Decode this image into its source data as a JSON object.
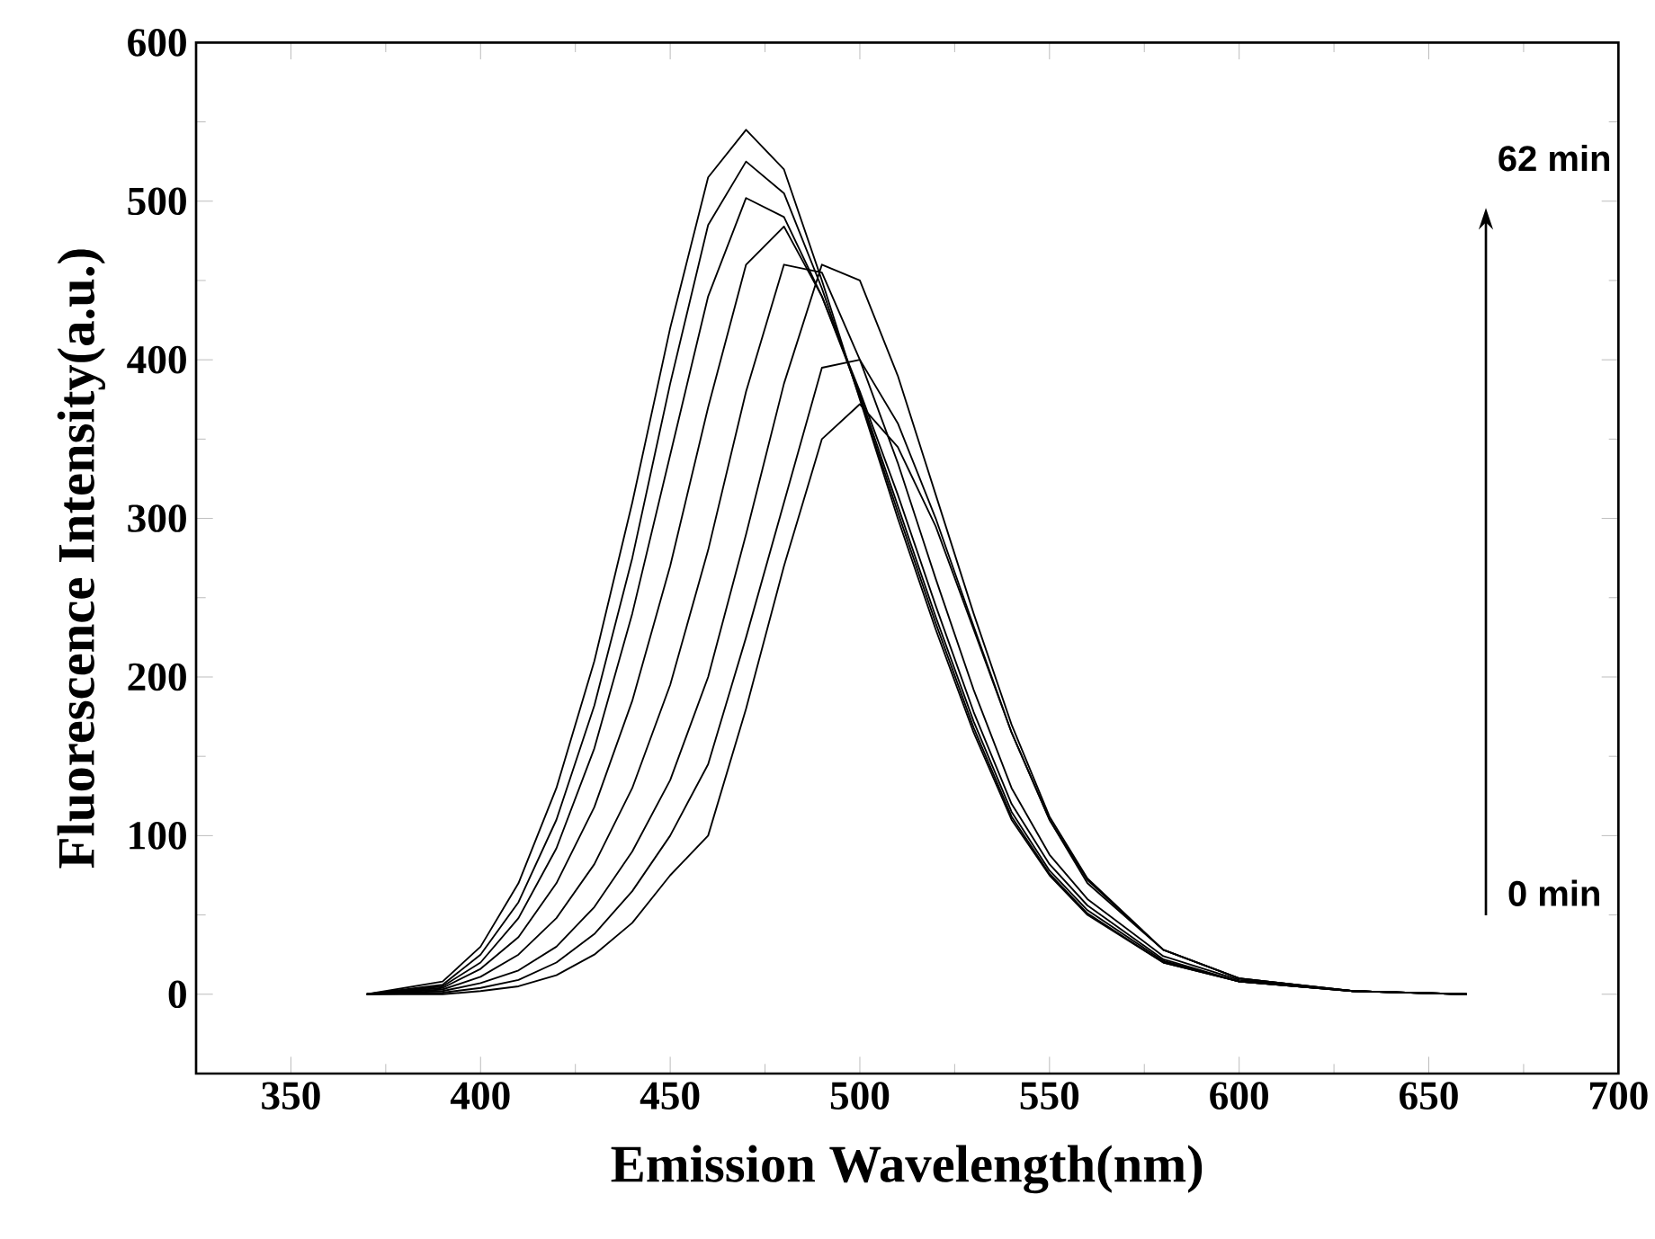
{
  "chart_data": {
    "type": "line",
    "xlabel": "Emission Wavelength(nm)",
    "ylabel": "Fluorescence Intensity(a.u.)",
    "annotations": [
      "62 min",
      "0 min"
    ],
    "x": [
      370,
      390,
      400,
      410,
      420,
      430,
      440,
      450,
      460,
      470,
      480,
      490,
      500,
      510,
      520,
      530,
      540,
      550,
      560,
      580,
      600,
      630,
      660
    ],
    "series": [
      {
        "color": "#000000",
        "values": [
          0,
          0,
          2,
          5,
          12,
          25,
          45,
          75,
          100,
          180,
          270,
          350,
          372,
          345,
          295,
          230,
          165,
          110,
          70,
          28,
          10,
          2,
          0
        ]
      },
      {
        "color": "#000000",
        "values": [
          0,
          1,
          4,
          9,
          20,
          38,
          65,
          100,
          145,
          225,
          310,
          395,
          400,
          360,
          300,
          232,
          165,
          110,
          72,
          28,
          10,
          2,
          0
        ]
      },
      {
        "color": "#000000",
        "values": [
          0,
          2,
          7,
          15,
          30,
          55,
          90,
          135,
          200,
          290,
          385,
          460,
          450,
          390,
          315,
          240,
          170,
          112,
          73,
          28,
          10,
          2,
          0
        ]
      },
      {
        "color": "#000000",
        "values": [
          0,
          3,
          11,
          25,
          48,
          82,
          130,
          195,
          280,
          380,
          460,
          455,
          400,
          335,
          262,
          192,
          130,
          88,
          60,
          24,
          9,
          2,
          0
        ]
      },
      {
        "color": "#000000",
        "values": [
          0,
          4,
          16,
          36,
          70,
          118,
          185,
          270,
          370,
          460,
          484,
          440,
          380,
          315,
          245,
          178,
          120,
          82,
          56,
          22,
          8,
          2,
          0
        ]
      },
      {
        "color": "#000000",
        "values": [
          0,
          5,
          20,
          48,
          92,
          155,
          240,
          340,
          440,
          502,
          490,
          440,
          378,
          308,
          238,
          172,
          115,
          78,
          53,
          21,
          8,
          2,
          0
        ]
      },
      {
        "color": "#000000",
        "values": [
          0,
          6,
          25,
          58,
          110,
          182,
          275,
          385,
          485,
          525,
          505,
          445,
          376,
          304,
          234,
          168,
          112,
          76,
          51,
          20,
          8,
          2,
          0
        ]
      },
      {
        "color": "#000000",
        "values": [
          0,
          8,
          30,
          70,
          130,
          210,
          310,
          420,
          515,
          545,
          520,
          450,
          375,
          300,
          230,
          165,
          110,
          75,
          50,
          20,
          8,
          2,
          0
        ]
      }
    ],
    "xlim": [
      325,
      700
    ],
    "ylim": [
      -50,
      600
    ],
    "xticks": [
      350,
      400,
      450,
      500,
      550,
      600,
      650,
      700
    ],
    "yticks": [
      0,
      100,
      200,
      300,
      400,
      500,
      600
    ],
    "marker": "none",
    "line_style": "solid"
  }
}
